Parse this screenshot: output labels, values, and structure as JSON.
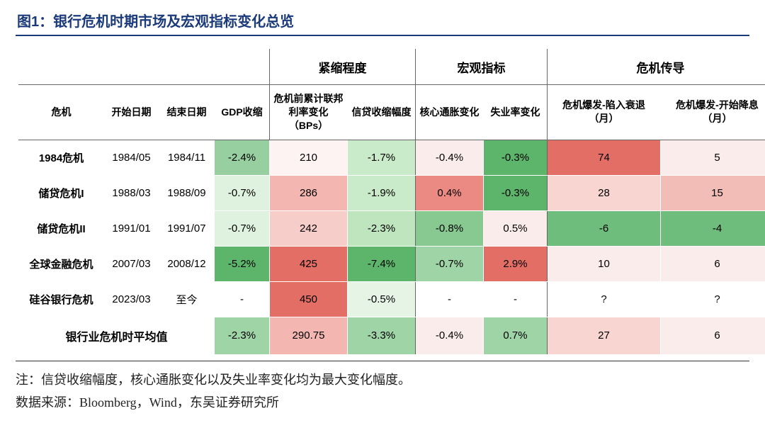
{
  "title": "图1：银行危机时期市场及宏观指标变化总览",
  "groups": {
    "g1": "紧缩程度",
    "g2": "宏观指标",
    "g3": "危机传导"
  },
  "headers": {
    "crisis": "危机",
    "start": "开始日期",
    "end": "结束日期",
    "gdp": "GDP收缩",
    "rate": "危机前累计联邦利率变化（BPs）",
    "credit": "信贷收缩幅度",
    "cpi": "核心通胀变化",
    "unemp": "失业率变化",
    "lag_recession": "危机爆发-陷入衰退（月）",
    "lag_cut": "危机爆发-开始降息（月）"
  },
  "rows": [
    {
      "name": "1984危机",
      "start": "1984/05",
      "end": "1984/11",
      "gdp": {
        "v": "-2.4%",
        "c": "#97cfa0"
      },
      "rate": {
        "v": "210",
        "c": "#fef3f3"
      },
      "credit": {
        "v": "-1.7%",
        "c": "#caebca"
      },
      "cpi": {
        "v": "-0.4%",
        "c": "#fbecec"
      },
      "unemp": {
        "v": "-0.3%",
        "c": "#5cb56b"
      },
      "rec": {
        "v": "74",
        "c": "#e26e66"
      },
      "cut": {
        "v": "5",
        "c": "#fbecec"
      }
    },
    {
      "name": "储贷危机I",
      "start": "1988/03",
      "end": "1988/09",
      "gdp": {
        "v": "-0.7%",
        "c": "#dff1df"
      },
      "rate": {
        "v": "286",
        "c": "#f3b6b0"
      },
      "credit": {
        "v": "-1.9%",
        "c": "#caebca"
      },
      "cpi": {
        "v": "0.4%",
        "c": "#ea8a82"
      },
      "unemp": {
        "v": "-0.3%",
        "c": "#5cb56b"
      },
      "rec": {
        "v": "28",
        "c": "#f8d5d1"
      },
      "cut": {
        "v": "15",
        "c": "#f2bdb7"
      }
    },
    {
      "name": "储贷危机II",
      "start": "1991/01",
      "end": "1991/07",
      "gdp": {
        "v": "-0.7%",
        "c": "#dff1df"
      },
      "rate": {
        "v": "242",
        "c": "#f7cdc9"
      },
      "credit": {
        "v": "-2.3%",
        "c": "#bfe5bf"
      },
      "cpi": {
        "v": "-0.8%",
        "c": "#88c891"
      },
      "unemp": {
        "v": "0.5%",
        "c": "#fbecec"
      },
      "rec": {
        "v": "-6",
        "c": "#6fbd7c"
      },
      "cut": {
        "v": "-4",
        "c": "#6fbd7c"
      }
    },
    {
      "name": "全球金融危机",
      "start": "2007/03",
      "end": "2008/12",
      "gdp": {
        "v": "-5.2%",
        "c": "#5cb56b"
      },
      "rate": {
        "v": "425",
        "c": "#e26e66"
      },
      "credit": {
        "v": "-7.4%",
        "c": "#5cb56b"
      },
      "cpi": {
        "v": "-0.7%",
        "c": "#9fd4a7"
      },
      "unemp": {
        "v": "2.9%",
        "c": "#e26e66"
      },
      "rec": {
        "v": "10",
        "c": "#fbecec"
      },
      "cut": {
        "v": "6",
        "c": "#fbecec"
      }
    },
    {
      "name": "硅谷银行危机",
      "start": "2023/03",
      "end": "至今",
      "gdp": {
        "v": "-",
        "c": "#ffffff"
      },
      "rate": {
        "v": "450",
        "c": "#e26e66"
      },
      "credit": {
        "v": "-0.5%",
        "c": "#e6f4e6"
      },
      "cpi": {
        "v": "-",
        "c": "#ffffff"
      },
      "unemp": {
        "v": "-",
        "c": "#ffffff"
      },
      "rec": {
        "v": "?",
        "c": "#ffffff"
      },
      "cut": {
        "v": "?",
        "c": "#ffffff"
      }
    }
  ],
  "avg": {
    "label": "银行业危机时平均值",
    "gdp": {
      "v": "-2.3%",
      "c": "#9fd4a7"
    },
    "rate": {
      "v": "290.75",
      "c": "#f3b6b0"
    },
    "credit": {
      "v": "-3.3%",
      "c": "#9fd4a7"
    },
    "cpi": {
      "v": "-0.4%",
      "c": "#fbecec"
    },
    "unemp": {
      "v": "0.7%",
      "c": "#9fd4a7"
    },
    "rec": {
      "v": "27",
      "c": "#f8d5d1"
    },
    "cut": {
      "v": "6",
      "c": "#fbecec"
    }
  },
  "footer": {
    "note": "注：信贷收缩幅度，核心通胀变化以及失业率变化均为最大变化幅度。",
    "source": "数据来源：Bloomberg，Wind，东吴证券研究所"
  },
  "col_widths": [
    "120",
    "78",
    "78",
    "78",
    "110",
    "96",
    "96",
    "90",
    "160",
    "160"
  ],
  "header_border_color": "#666666",
  "outer_border_color": "#888888"
}
